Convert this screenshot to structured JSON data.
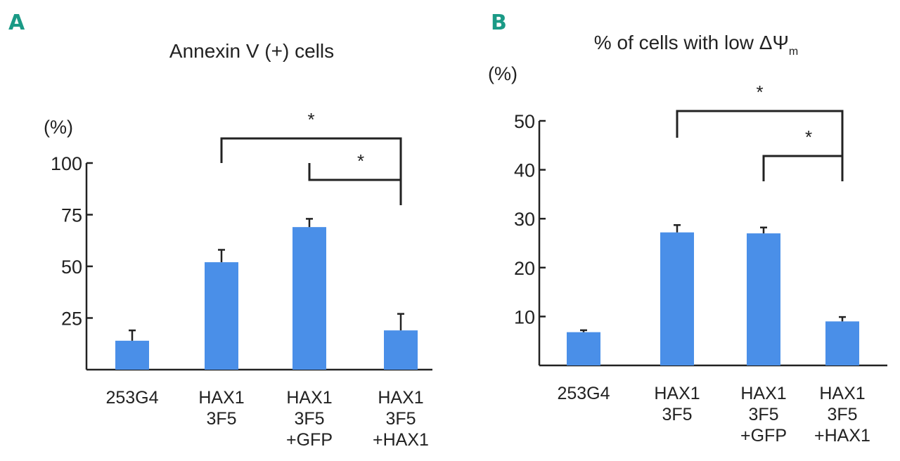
{
  "colors": {
    "bar": "#4a8fe8",
    "panel_letter": "#1a9a86"
  },
  "chart_data": [
    {
      "panel": "A",
      "type": "bar",
      "title": "Annexin V (+) cells",
      "ylabel": "(%)",
      "ylim": [
        0,
        100
      ],
      "yticks": [
        "25",
        "50",
        "75",
        "100"
      ],
      "ytick_values": [
        25,
        50,
        75,
        100
      ],
      "categories": [
        [
          "253G4"
        ],
        [
          "HAX1",
          "3F5"
        ],
        [
          "HAX1",
          "3F5",
          "+GFP"
        ],
        [
          "HAX1",
          "3F5",
          "+HAX1"
        ]
      ],
      "values": [
        14,
        52,
        69,
        19
      ],
      "errors": [
        5,
        6,
        4,
        8
      ],
      "significance": [
        {
          "from": 1,
          "to": 3,
          "label": "*",
          "level": 2
        },
        {
          "from": 2,
          "to": 3,
          "label": "*",
          "level": 1
        }
      ]
    },
    {
      "panel": "B",
      "type": "bar",
      "title": "% of cells with low ΔΨ",
      "title_subscript": "m",
      "ylabel": "(%)",
      "ylim": [
        0,
        50
      ],
      "yticks": [
        "10",
        "20",
        "30",
        "40",
        "50"
      ],
      "ytick_values": [
        10,
        20,
        30,
        40,
        50
      ],
      "categories": [
        [
          "253G4"
        ],
        [
          "HAX1",
          "3F5"
        ],
        [
          "HAX1",
          "3F5",
          "+GFP"
        ],
        [
          "HAX1",
          "3F5",
          "+HAX1"
        ]
      ],
      "values": [
        6.8,
        27.2,
        27.0,
        9.0
      ],
      "errors": [
        0.4,
        1.5,
        1.2,
        0.9
      ],
      "significance": [
        {
          "from": 1,
          "to": 3,
          "label": "*",
          "level": 2
        },
        {
          "from": 2,
          "to": 3,
          "label": "*",
          "level": 1
        }
      ]
    }
  ]
}
